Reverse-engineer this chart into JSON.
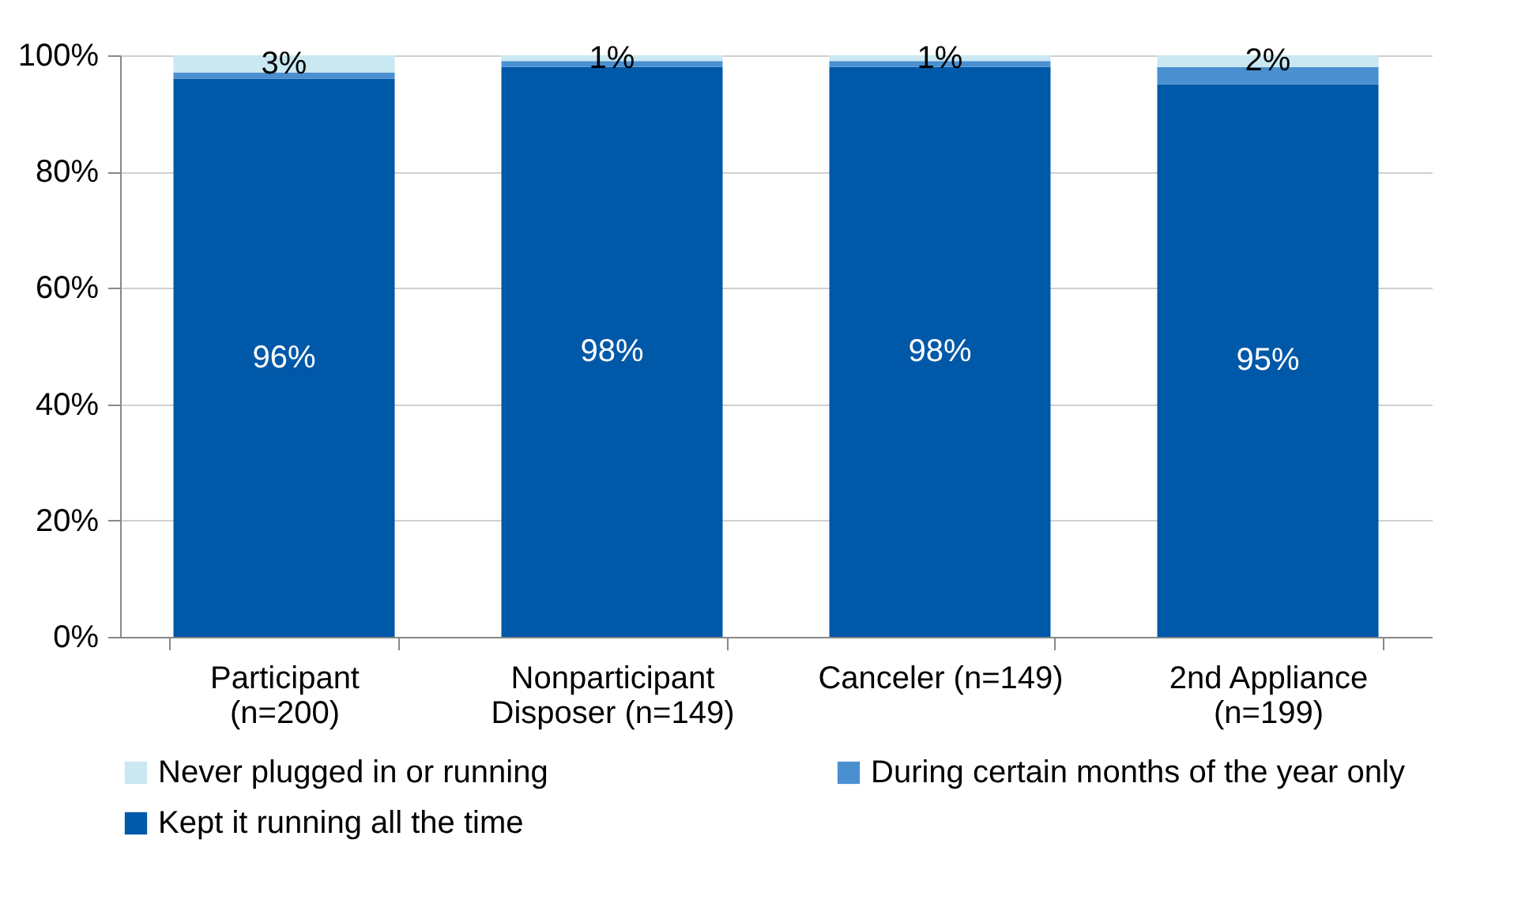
{
  "chart_data": {
    "type": "bar",
    "stacked": true,
    "categories": [
      "Participant (n=200)",
      "Nonparticipant Disposer (n=149)",
      "Canceler (n=149)",
      "2nd Appliance (n=199)"
    ],
    "series": [
      {
        "name": "Kept it running all the time",
        "color": "#0058a8",
        "values": [
          96,
          98,
          98,
          95
        ],
        "value_labels": [
          "96%",
          "98%",
          "98%",
          "95%"
        ]
      },
      {
        "name": "During certain months of the year only",
        "color": "#4a8fd0",
        "values": [
          1,
          1,
          1,
          3
        ],
        "value_labels": [
          null,
          null,
          null,
          null
        ]
      },
      {
        "name": "Never plugged in or running",
        "color": "#c9e8f2",
        "values": [
          3,
          1,
          1,
          2
        ],
        "value_labels": [
          "3%",
          "1%",
          "1%",
          "2%"
        ]
      }
    ],
    "ylim": [
      0,
      100
    ],
    "yticks": [
      {
        "value": 0,
        "label": "0%"
      },
      {
        "value": 20,
        "label": "20%"
      },
      {
        "value": 40,
        "label": "40%"
      },
      {
        "value": 60,
        "label": "60%"
      },
      {
        "value": 80,
        "label": "80%"
      },
      {
        "value": 100,
        "label": "100%"
      }
    ],
    "grid": "y",
    "legend": "bottom"
  }
}
